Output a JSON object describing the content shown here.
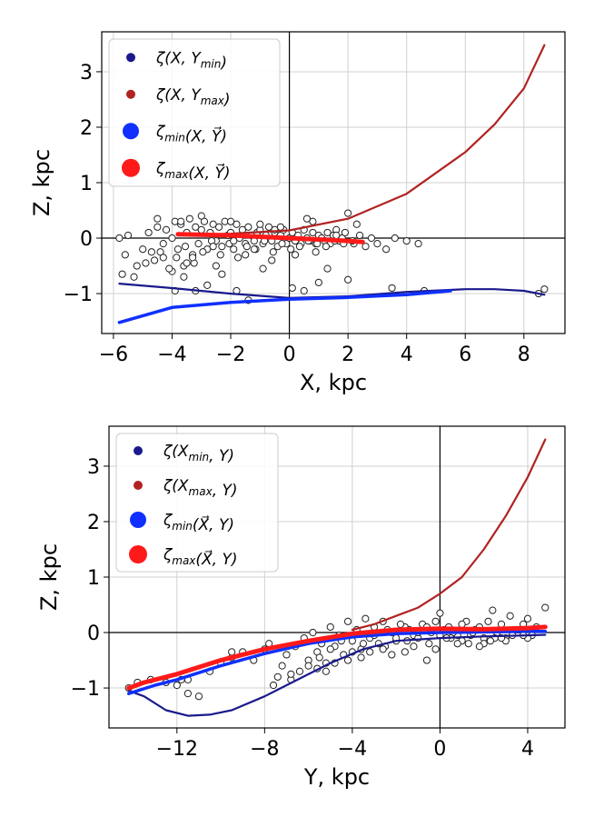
{
  "chart_data": [
    {
      "type": "scatter",
      "xlabel": "X, kpc",
      "ylabel": "Z, kpc",
      "xlim": [
        -6.4,
        9.4
      ],
      "ylim": [
        -1.72,
        3.72
      ],
      "xticks": [
        -6,
        -4,
        -2,
        0,
        2,
        4,
        6,
        8
      ],
      "xtick_labels": [
        "−6",
        "−4",
        "−2",
        "0",
        "2",
        "4",
        "6",
        "8"
      ],
      "yticks": [
        -1,
        0,
        1,
        2,
        3
      ],
      "ytick_labels": [
        "−1",
        "0",
        "1",
        "2",
        "3"
      ],
      "legend": [
        "ζ(X, Y_min)",
        "ζ(X, Y_max)",
        "ζ_min(X, Y⃗)",
        "ζ_max(X, Y⃗)"
      ],
      "legend_location": "top-left",
      "reference_lines": {
        "x": 0,
        "y": 0
      },
      "series": [
        {
          "name": "ζ(X, Y_min)",
          "color": "#1a1a8c",
          "x": [
            -5.8,
            -4,
            -2,
            0,
            2,
            4,
            6,
            7,
            8,
            8.7
          ],
          "y": [
            -0.82,
            -0.9,
            -1.0,
            -1.08,
            -1.05,
            -0.97,
            -0.92,
            -0.92,
            -0.95,
            -1.02
          ]
        },
        {
          "name": "ζ(X, Y_max)",
          "color": "#b22222",
          "x": [
            -3.8,
            -2,
            0,
            2,
            4,
            6,
            7,
            8,
            8.7
          ],
          "y": [
            0.05,
            0.08,
            0.14,
            0.35,
            0.8,
            1.55,
            2.05,
            2.7,
            3.48
          ]
        },
        {
          "name": "ζ_min(X, Y⃗)",
          "color": "#1030ff",
          "x": [
            -5.8,
            -4,
            -2,
            0,
            2,
            4,
            5.5
          ],
          "y": [
            -1.52,
            -1.25,
            -1.16,
            -1.1,
            -1.07,
            -1.02,
            -0.95
          ]
        },
        {
          "name": "ζ_max(X, Y⃗)",
          "color": "#ff1a1a",
          "x": [
            -3.8,
            -2,
            0,
            2,
            2.5
          ],
          "y": [
            0.07,
            0.05,
            0.0,
            -0.05,
            -0.07
          ]
        }
      ],
      "stars": {
        "name": "stars",
        "x": [
          -5.8,
          -5.6,
          -5.5,
          -5.2,
          -5.0,
          -4.8,
          -4.6,
          -4.5,
          -4.3,
          -4.2,
          -4.0,
          -3.9,
          -3.8,
          -3.7,
          -3.6,
          -3.5,
          -3.4,
          -3.3,
          -3.2,
          -3.1,
          -3.0,
          -2.9,
          -2.8,
          -2.7,
          -2.6,
          -2.5,
          -2.4,
          -2.3,
          -2.2,
          -2.1,
          -2.0,
          -1.9,
          -1.8,
          -1.7,
          -1.6,
          -1.5,
          -1.4,
          -1.3,
          -1.2,
          -1.1,
          -1.0,
          -0.9,
          -0.8,
          -0.7,
          -0.6,
          -0.5,
          -0.4,
          -0.3,
          -0.2,
          -0.1,
          0.0,
          0.1,
          0.2,
          0.3,
          0.4,
          0.5,
          0.6,
          0.7,
          0.8,
          0.9,
          1.0,
          1.1,
          1.2,
          1.3,
          1.4,
          1.5,
          1.6,
          1.7,
          1.8,
          1.9,
          2.0,
          2.2,
          2.4,
          2.6,
          2.8,
          3.0,
          3.3,
          3.6,
          4.0,
          4.4,
          -5.7,
          -5.3,
          -4.9,
          -4.4,
          -4.1,
          -3.85,
          -3.55,
          -3.25,
          -2.95,
          -2.65,
          -2.35,
          -2.05,
          -1.75,
          -1.45,
          -1.15,
          -0.85,
          -0.55,
          -0.25,
          0.05,
          0.35,
          0.65,
          0.95,
          1.25,
          1.55,
          1.85,
          2.15,
          -4.7,
          -4.0,
          -3.3,
          -2.6,
          -1.9,
          -1.2,
          -0.5,
          0.2,
          0.9,
          1.6,
          -3.9,
          -3.2,
          -2.3,
          -1.4,
          -0.6,
          0.5,
          1.3,
          -3.6,
          -2.8,
          -1.8,
          -0.9,
          0.1,
          1.0,
          -4.3,
          -3.5,
          -2.5,
          -1.5,
          2.0,
          3.5,
          4.6,
          8.5,
          8.7,
          -3.0,
          -2.0,
          -1.0,
          0.8,
          2.3,
          -4.5,
          -3.7,
          -0.3,
          0.6
        ],
        "y": [
          0.0,
          -0.3,
          0.05,
          -0.5,
          -0.2,
          0.1,
          -0.4,
          0.2,
          -0.1,
          0.15,
          -0.6,
          0.3,
          -0.2,
          0.25,
          -0.5,
          0.1,
          0.35,
          -0.3,
          0.2,
          -0.1,
          0.15,
          0.3,
          -0.2,
          0.1,
          0.25,
          -0.05,
          0.2,
          -0.15,
          0.3,
          0.05,
          0.1,
          -0.2,
          0.25,
          0.0,
          0.15,
          -0.1,
          0.2,
          0.05,
          -0.05,
          0.1,
          0.15,
          -0.1,
          0.05,
          0.2,
          -0.05,
          0.1,
          -0.15,
          0.05,
          0.15,
          -0.1,
          0.0,
          0.1,
          -0.05,
          0.05,
          -0.1,
          0.15,
          0.0,
          -0.05,
          0.1,
          -0.1,
          0.05,
          0.0,
          -0.05,
          0.1,
          -0.1,
          0.05,
          0.15,
          -0.05,
          0.0,
          0.1,
          0.45,
          -0.1,
          0.05,
          -0.15,
          0.0,
          -0.1,
          -0.2,
          0.0,
          -0.05,
          -0.1,
          -0.65,
          -0.7,
          -0.45,
          -0.25,
          -0.55,
          -0.35,
          -0.15,
          -0.45,
          -0.25,
          -0.05,
          -0.3,
          -0.1,
          -0.35,
          -0.15,
          -0.2,
          -0.05,
          -0.25,
          -0.1,
          -0.2,
          -0.15,
          -0.05,
          -0.1,
          -0.15,
          -0.05,
          -0.1,
          -0.05,
          -0.25,
          0.0,
          -0.35,
          -0.15,
          -0.05,
          -0.2,
          0.15,
          -0.3,
          -0.25,
          0.05,
          -0.95,
          -0.95,
          -0.65,
          -1.12,
          -0.4,
          -0.95,
          -0.55,
          -0.7,
          -0.85,
          -0.95,
          -0.55,
          -0.9,
          -0.8,
          -0.35,
          -0.45,
          -0.5,
          -0.3,
          -0.75,
          -0.9,
          -0.95,
          -1.0,
          -0.92,
          0.4,
          0.3,
          0.25,
          0.3,
          0.25,
          0.35,
          0.3,
          0.2,
          0.35
        ]
      }
    },
    {
      "type": "scatter",
      "xlabel": "Y, kpc",
      "ylabel": "Z, kpc",
      "xlim": [
        -15.1,
        5.7
      ],
      "ylim": [
        -1.72,
        3.72
      ],
      "xticks": [
        -12,
        -8,
        -4,
        0,
        4
      ],
      "xtick_labels": [
        "−12",
        "−8",
        "−4",
        "0",
        "4"
      ],
      "yticks": [
        -1,
        0,
        1,
        2,
        3
      ],
      "ytick_labels": [
        "−1",
        "0",
        "1",
        "2",
        "3"
      ],
      "legend": [
        "ζ(X_min, Y)",
        "ζ(X_max, Y)",
        "ζ_min(X⃗, Y)",
        "ζ_max(X⃗, Y)"
      ],
      "legend_location": "top-left",
      "reference_lines": {
        "x": 0,
        "y": 0
      },
      "series": [
        {
          "name": "ζ(X_min, Y)",
          "color": "#1a1a8c",
          "x": [
            -14.2,
            -13.5,
            -12.5,
            -11.5,
            -10.5,
            -9.5,
            -8,
            -6.5,
            -5,
            -3.5,
            -2,
            0,
            2,
            4,
            4.8
          ],
          "y": [
            -1.05,
            -1.15,
            -1.4,
            -1.5,
            -1.48,
            -1.4,
            -1.15,
            -0.85,
            -0.55,
            -0.3,
            -0.15,
            -0.1,
            -0.07,
            -0.05,
            -0.04
          ]
        },
        {
          "name": "ζ(X_max, Y)",
          "color": "#b22222",
          "x": [
            -4,
            -3,
            -2,
            -1,
            0,
            1,
            2,
            3,
            4,
            4.8
          ],
          "y": [
            0.05,
            0.15,
            0.3,
            0.45,
            0.7,
            1.0,
            1.5,
            2.1,
            2.8,
            3.48
          ]
        },
        {
          "name": "ζ_min(X⃗, Y)",
          "color": "#1030ff",
          "x": [
            -14.2,
            -13,
            -12,
            -10,
            -8,
            -6,
            -4,
            -2,
            0,
            2,
            4,
            4.8
          ],
          "y": [
            -1.1,
            -0.95,
            -0.85,
            -0.6,
            -0.38,
            -0.2,
            -0.08,
            -0.02,
            0.0,
            0.01,
            0.02,
            0.02
          ]
        },
        {
          "name": "ζ_max(X⃗, Y)",
          "color": "#ff1a1a",
          "x": [
            -14.2,
            -13.5,
            -12,
            -10,
            -8,
            -6,
            -4,
            -2,
            0,
            2,
            4,
            4.8
          ],
          "y": [
            -1.0,
            -0.9,
            -0.75,
            -0.5,
            -0.3,
            -0.15,
            -0.02,
            0.05,
            0.07,
            0.06,
            0.08,
            0.1
          ]
        }
      ],
      "stars": {
        "name": "stars",
        "x": [
          -14.2,
          -13.8,
          -13.2,
          -12.5,
          -12.0,
          -11.5,
          -11.0,
          -10.5,
          -10.0,
          -9.5,
          -9.0,
          -8.5,
          -8.0,
          -7.6,
          -7.2,
          -6.8,
          -6.4,
          -6.0,
          -5.6,
          -5.2,
          -4.8,
          -4.4,
          -4.0,
          -3.6,
          -3.2,
          -2.8,
          -2.4,
          -2.0,
          -1.6,
          -1.2,
          -0.8,
          -0.4,
          0.0,
          0.4,
          0.8,
          1.2,
          1.6,
          2.0,
          2.4,
          2.8,
          3.2,
          3.6,
          4.0,
          4.4,
          4.8,
          -7.0,
          -6.6,
          -6.2,
          -5.8,
          -5.4,
          -5.0,
          -4.6,
          -4.2,
          -3.8,
          -3.4,
          -3.0,
          -2.6,
          -2.2,
          -1.8,
          -1.4,
          -1.0,
          -0.6,
          -0.2,
          0.2,
          0.6,
          1.0,
          1.4,
          1.8,
          2.2,
          2.6,
          3.0,
          3.4,
          3.8,
          4.2,
          -6.0,
          -5.5,
          -5.0,
          -4.5,
          -4.0,
          -3.5,
          -3.0,
          -2.5,
          -2.0,
          -1.5,
          -1.0,
          -0.5,
          0.0,
          0.5,
          1.0,
          1.5,
          2.0,
          2.5,
          3.0,
          3.5,
          4.0,
          -5.2,
          -4.2,
          -3.2,
          -2.2,
          -1.2,
          -0.2,
          0.8,
          1.8,
          2.8,
          3.8,
          -6.8,
          -7.4,
          -5.6,
          -4.8,
          -3.6,
          -2.6,
          -1.6,
          -0.6,
          0.3,
          1.3,
          2.3,
          3.3,
          -11.5,
          -11.8,
          -9.5,
          -7.8
        ],
        "y": [
          -1.0,
          -0.9,
          -0.85,
          -0.9,
          -0.95,
          -0.85,
          -1.15,
          -0.7,
          -0.55,
          -0.45,
          -0.35,
          -0.5,
          -0.3,
          -0.95,
          -0.6,
          -0.85,
          -0.7,
          -0.5,
          -0.35,
          -0.55,
          -0.25,
          -0.4,
          -0.15,
          -0.3,
          -0.1,
          -0.2,
          0.05,
          -0.15,
          0.1,
          -0.05,
          0.15,
          0.0,
          0.35,
          0.1,
          -0.05,
          0.2,
          0.05,
          -0.1,
          0.4,
          0.15,
          0.3,
          0.05,
          0.25,
          0.1,
          0.45,
          -0.4,
          -0.25,
          -0.1,
          0.0,
          -0.2,
          0.1,
          -0.05,
          0.2,
          0.05,
          0.25,
          0.1,
          0.2,
          0.0,
          0.15,
          0.05,
          -0.1,
          0.1,
          0.2,
          0.05,
          0.0,
          0.15,
          -0.05,
          0.1,
          0.2,
          0.0,
          -0.1,
          0.05,
          0.15,
          -0.05,
          -0.6,
          -0.45,
          -0.3,
          -0.15,
          -0.35,
          -0.2,
          -0.05,
          -0.25,
          -0.1,
          -0.15,
          0.0,
          -0.2,
          -0.05,
          -0.1,
          -0.15,
          0.0,
          -0.2,
          -0.1,
          -0.15,
          0.05,
          -0.1,
          -0.7,
          -0.5,
          -0.35,
          -0.4,
          -0.25,
          -0.3,
          -0.2,
          -0.25,
          -0.1,
          -0.05,
          -0.75,
          -0.8,
          -0.65,
          -0.55,
          -0.45,
          -0.3,
          -0.35,
          -0.5,
          -0.1,
          -0.2,
          -0.15,
          -0.05,
          -1.1,
          -0.85,
          -0.35,
          -0.2
        ]
      }
    }
  ]
}
